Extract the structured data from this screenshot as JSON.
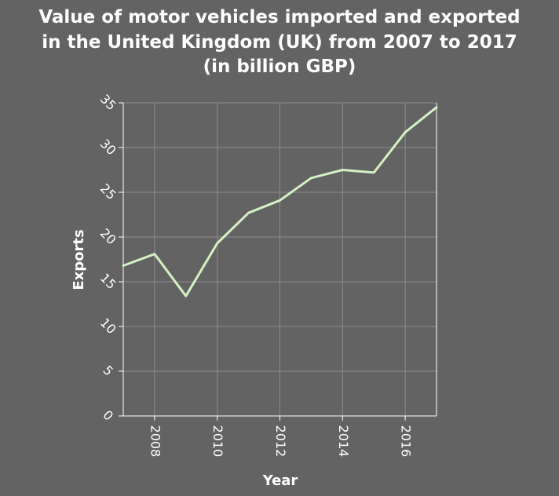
{
  "chart_data": {
    "type": "line",
    "title": "Value of motor vehicles imported and exported in the United Kingdom (UK) from 2007 to 2017 (in billion GBP)",
    "title_lines": [
      "Value of motor vehicles imported and exported",
      "in the United Kingdom (UK) from 2007 to 2017",
      "(in billion GBP)"
    ],
    "xlabel": "Year",
    "ylabel": "Exports",
    "x": [
      2007,
      2008,
      2009,
      2010,
      2011,
      2012,
      2013,
      2014,
      2015,
      2016,
      2017
    ],
    "values": [
      16.8,
      18.1,
      13.4,
      19.3,
      22.7,
      24.1,
      26.6,
      27.5,
      27.2,
      31.7,
      34.5
    ],
    "xlim": [
      2007,
      2017
    ],
    "ylim": [
      0,
      35
    ],
    "xticks": [
      "2008",
      "2010",
      "2012",
      "2014",
      "2016"
    ],
    "yticks": [
      "0",
      "5",
      "10",
      "15",
      "20",
      "25",
      "30",
      "35"
    ],
    "grid": true,
    "line_color": "#d4f0c4"
  }
}
